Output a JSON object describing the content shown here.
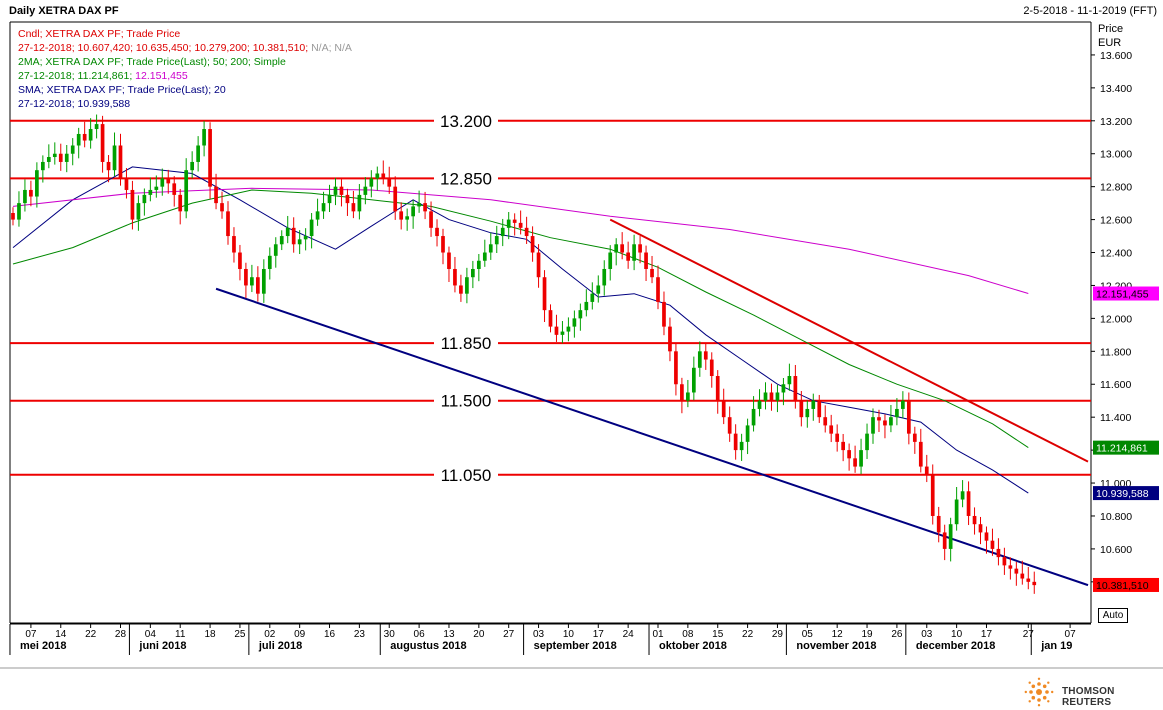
{
  "header": {
    "title": "Daily XETRA DAX PF",
    "date_range": "2-5-2018 - 11-1-2019 (FFT)"
  },
  "legend": [
    {
      "text": "Cndl; XETRA DAX PF; Trade Price",
      "color": "#dd0000"
    },
    {
      "text": "27-12-2018; 10.607,420; 10.635,450; 10.279,200; 10.381,510;",
      "color": "#dd0000",
      "suffix": " N/A; N/A",
      "suffix_color": "#999999"
    },
    {
      "text": "2MA; XETRA DAX PF; Trade Price(Last);  50; 200; Simple",
      "color": "#008800"
    },
    {
      "text": "27-12-2018; 11.214,861;",
      "color": "#008800",
      "suffix": " 12.151,455",
      "suffix_color": "#cc00cc"
    },
    {
      "text": "SMA; XETRA DAX PF; Trade Price(Last);  20",
      "color": "#000080"
    },
    {
      "text": "27-12-2018; 10.939,588",
      "color": "#000080"
    }
  ],
  "axis": {
    "title_line1": "Price",
    "title_line2": "EUR",
    "auto_label": "Auto"
  },
  "footer": {
    "brand": "THOMSON REUTERS"
  },
  "chart_data": {
    "type": "candlestick",
    "ylim": [
      10150,
      13800
    ],
    "y_ticks": [
      {
        "v": 10400,
        "label": "10.400"
      },
      {
        "v": 10600,
        "label": "10.600"
      },
      {
        "v": 10800,
        "label": "10.800"
      },
      {
        "v": 11000,
        "label": "11.000"
      },
      {
        "v": 11200,
        "label": "11.200"
      },
      {
        "v": 11400,
        "label": "11.400"
      },
      {
        "v": 11600,
        "label": "11.600"
      },
      {
        "v": 11800,
        "label": "11.800"
      },
      {
        "v": 12000,
        "label": "12.000"
      },
      {
        "v": 12200,
        "label": "12.200"
      },
      {
        "v": 12400,
        "label": "12.400"
      },
      {
        "v": 12600,
        "label": "12.600"
      },
      {
        "v": 12800,
        "label": "12.800"
      },
      {
        "v": 13000,
        "label": "13.000"
      },
      {
        "v": 13200,
        "label": "13.200"
      },
      {
        "v": 13400,
        "label": "13.400"
      },
      {
        "v": 13600,
        "label": "13.600"
      }
    ],
    "x_ticks": [
      "07",
      "14",
      "22",
      "28",
      "04",
      "11",
      "18",
      "25",
      "02",
      "09",
      "16",
      "23",
      "30",
      "06",
      "13",
      "20",
      "27",
      "03",
      "10",
      "17",
      "24",
      "01",
      "08",
      "15",
      "22",
      "29",
      "05",
      "12",
      "19",
      "26",
      "03",
      "10",
      "17",
      "27",
      "07"
    ],
    "x_tick_index": [
      3,
      8,
      13,
      18,
      23,
      28,
      33,
      38,
      43,
      48,
      53,
      58,
      63,
      68,
      73,
      78,
      83,
      88,
      93,
      98,
      103,
      108,
      113,
      118,
      123,
      128,
      133,
      138,
      143,
      148,
      153,
      158,
      163,
      170,
      177
    ],
    "months": [
      {
        "label": "mei 2018",
        "i": 1
      },
      {
        "label": "juni 2018",
        "i": 21
      },
      {
        "label": "juli 2018",
        "i": 41
      },
      {
        "label": "augustus 2018",
        "i": 63
      },
      {
        "label": "september 2018",
        "i": 87
      },
      {
        "label": "oktober 2018",
        "i": 108
      },
      {
        "label": "november 2018",
        "i": 131
      },
      {
        "label": "december 2018",
        "i": 151
      },
      {
        "label": "jan 19",
        "i": 172
      }
    ],
    "x_total": 181,
    "levels": [
      {
        "value": 13200,
        "label": "13.200"
      },
      {
        "value": 12850,
        "label": "12.850"
      },
      {
        "value": 11850,
        "label": "11.850"
      },
      {
        "value": 11500,
        "label": "11.500"
      },
      {
        "value": 11050,
        "label": "11.050"
      }
    ],
    "trendlines": [
      {
        "name": "resistance",
        "color": "#dd0000",
        "from": {
          "i": 100,
          "v": 12600
        },
        "to": {
          "i": 180,
          "v": 11130
        }
      },
      {
        "name": "support",
        "color": "#000080",
        "from": {
          "i": 34,
          "v": 12180
        },
        "to": {
          "i": 180,
          "v": 10380
        }
      }
    ],
    "closes": [
      12600,
      12700,
      12780,
      12740,
      12900,
      12950,
      12980,
      13000,
      12950,
      13000,
      13050,
      13120,
      13080,
      13150,
      13180,
      12950,
      12900,
      13050,
      12850,
      12780,
      12600,
      12700,
      12750,
      12780,
      12800,
      12850,
      12820,
      12750,
      12650,
      12900,
      12950,
      13050,
      13150,
      12800,
      12700,
      12650,
      12500,
      12400,
      12300,
      12200,
      12250,
      12150,
      12300,
      12380,
      12450,
      12500,
      12550,
      12450,
      12480,
      12500,
      12600,
      12650,
      12700,
      12750,
      12800,
      12750,
      12700,
      12650,
      12750,
      12800,
      12850,
      12880,
      12850,
      12800,
      12650,
      12600,
      12620,
      12680,
      12700,
      12650,
      12550,
      12500,
      12400,
      12300,
      12200,
      12150,
      12250,
      12300,
      12350,
      12400,
      12450,
      12500,
      12550,
      12600,
      12580,
      12550,
      12500,
      12400,
      12250,
      12050,
      11950,
      11900,
      11920,
      11950,
      12000,
      12050,
      12100,
      12150,
      12200,
      12300,
      12400,
      12450,
      12400,
      12350,
      12450,
      12400,
      12300,
      12250,
      12100,
      11950,
      11800,
      11600,
      11500,
      11550,
      11700,
      11800,
      11750,
      11650,
      11500,
      11400,
      11300,
      11200,
      11250,
      11350,
      11450,
      11500,
      11550,
      11500,
      11550,
      11600,
      11650,
      11500,
      11400,
      11450,
      11500,
      11400,
      11350,
      11300,
      11250,
      11200,
      11150,
      11100,
      11200,
      11300,
      11400,
      11380,
      11350,
      11400,
      11450,
      11500,
      11300,
      11250,
      11100,
      11050,
      10800,
      10700,
      10600,
      10750,
      10900,
      10950,
      10800,
      10750,
      10700,
      10650,
      10600,
      10550,
      10500,
      10480,
      10450,
      10420,
      10400,
      10380
    ],
    "series": [
      {
        "name": "SMA 20",
        "color": "#000080",
        "values": [
          {
            "i": 0,
            "v": 12430
          },
          {
            "i": 10,
            "v": 12720
          },
          {
            "i": 20,
            "v": 12920
          },
          {
            "i": 30,
            "v": 12880
          },
          {
            "i": 38,
            "v": 12720
          },
          {
            "i": 46,
            "v": 12550
          },
          {
            "i": 54,
            "v": 12420
          },
          {
            "i": 60,
            "v": 12560
          },
          {
            "i": 67,
            "v": 12720
          },
          {
            "i": 73,
            "v": 12600
          },
          {
            "i": 80,
            "v": 12520
          },
          {
            "i": 86,
            "v": 12480
          },
          {
            "i": 92,
            "v": 12300
          },
          {
            "i": 98,
            "v": 12130
          },
          {
            "i": 104,
            "v": 12150
          },
          {
            "i": 110,
            "v": 12080
          },
          {
            "i": 116,
            "v": 11900
          },
          {
            "i": 122,
            "v": 11750
          },
          {
            "i": 128,
            "v": 11600
          },
          {
            "i": 134,
            "v": 11500
          },
          {
            "i": 140,
            "v": 11460
          },
          {
            "i": 146,
            "v": 11420
          },
          {
            "i": 152,
            "v": 11370
          },
          {
            "i": 158,
            "v": 11200
          },
          {
            "i": 164,
            "v": 11080
          },
          {
            "i": 170,
            "v": 10939
          }
        ]
      },
      {
        "name": "MA 50",
        "color": "#008800",
        "values": [
          {
            "i": 0,
            "v": 12330
          },
          {
            "i": 10,
            "v": 12430
          },
          {
            "i": 20,
            "v": 12580
          },
          {
            "i": 30,
            "v": 12700
          },
          {
            "i": 40,
            "v": 12780
          },
          {
            "i": 50,
            "v": 12760
          },
          {
            "i": 60,
            "v": 12720
          },
          {
            "i": 70,
            "v": 12680
          },
          {
            "i": 80,
            "v": 12590
          },
          {
            "i": 90,
            "v": 12490
          },
          {
            "i": 100,
            "v": 12420
          },
          {
            "i": 108,
            "v": 12310
          },
          {
            "i": 116,
            "v": 12160
          },
          {
            "i": 124,
            "v": 12020
          },
          {
            "i": 132,
            "v": 11870
          },
          {
            "i": 140,
            "v": 11720
          },
          {
            "i": 148,
            "v": 11600
          },
          {
            "i": 156,
            "v": 11500
          },
          {
            "i": 164,
            "v": 11360
          },
          {
            "i": 170,
            "v": 11215
          }
        ]
      },
      {
        "name": "MA 200",
        "color": "#cc00cc",
        "values": [
          {
            "i": 0,
            "v": 12680
          },
          {
            "i": 20,
            "v": 12760
          },
          {
            "i": 40,
            "v": 12790
          },
          {
            "i": 60,
            "v": 12780
          },
          {
            "i": 80,
            "v": 12720
          },
          {
            "i": 100,
            "v": 12620
          },
          {
            "i": 120,
            "v": 12540
          },
          {
            "i": 140,
            "v": 12420
          },
          {
            "i": 160,
            "v": 12260
          },
          {
            "i": 170,
            "v": 12151
          }
        ]
      }
    ],
    "value_badges": [
      {
        "label": "12.151,455",
        "v": 12151,
        "bg": "#ff00ff",
        "fg": "#000000"
      },
      {
        "label": "11.214,861",
        "v": 11215,
        "bg": "#008800",
        "fg": "#ffffff"
      },
      {
        "label": "10.939,588",
        "v": 10939,
        "bg": "#000080",
        "fg": "#ffffff"
      },
      {
        "label": "10.381,510",
        "v": 10381,
        "bg": "#ff0000",
        "fg": "#000000"
      }
    ]
  }
}
